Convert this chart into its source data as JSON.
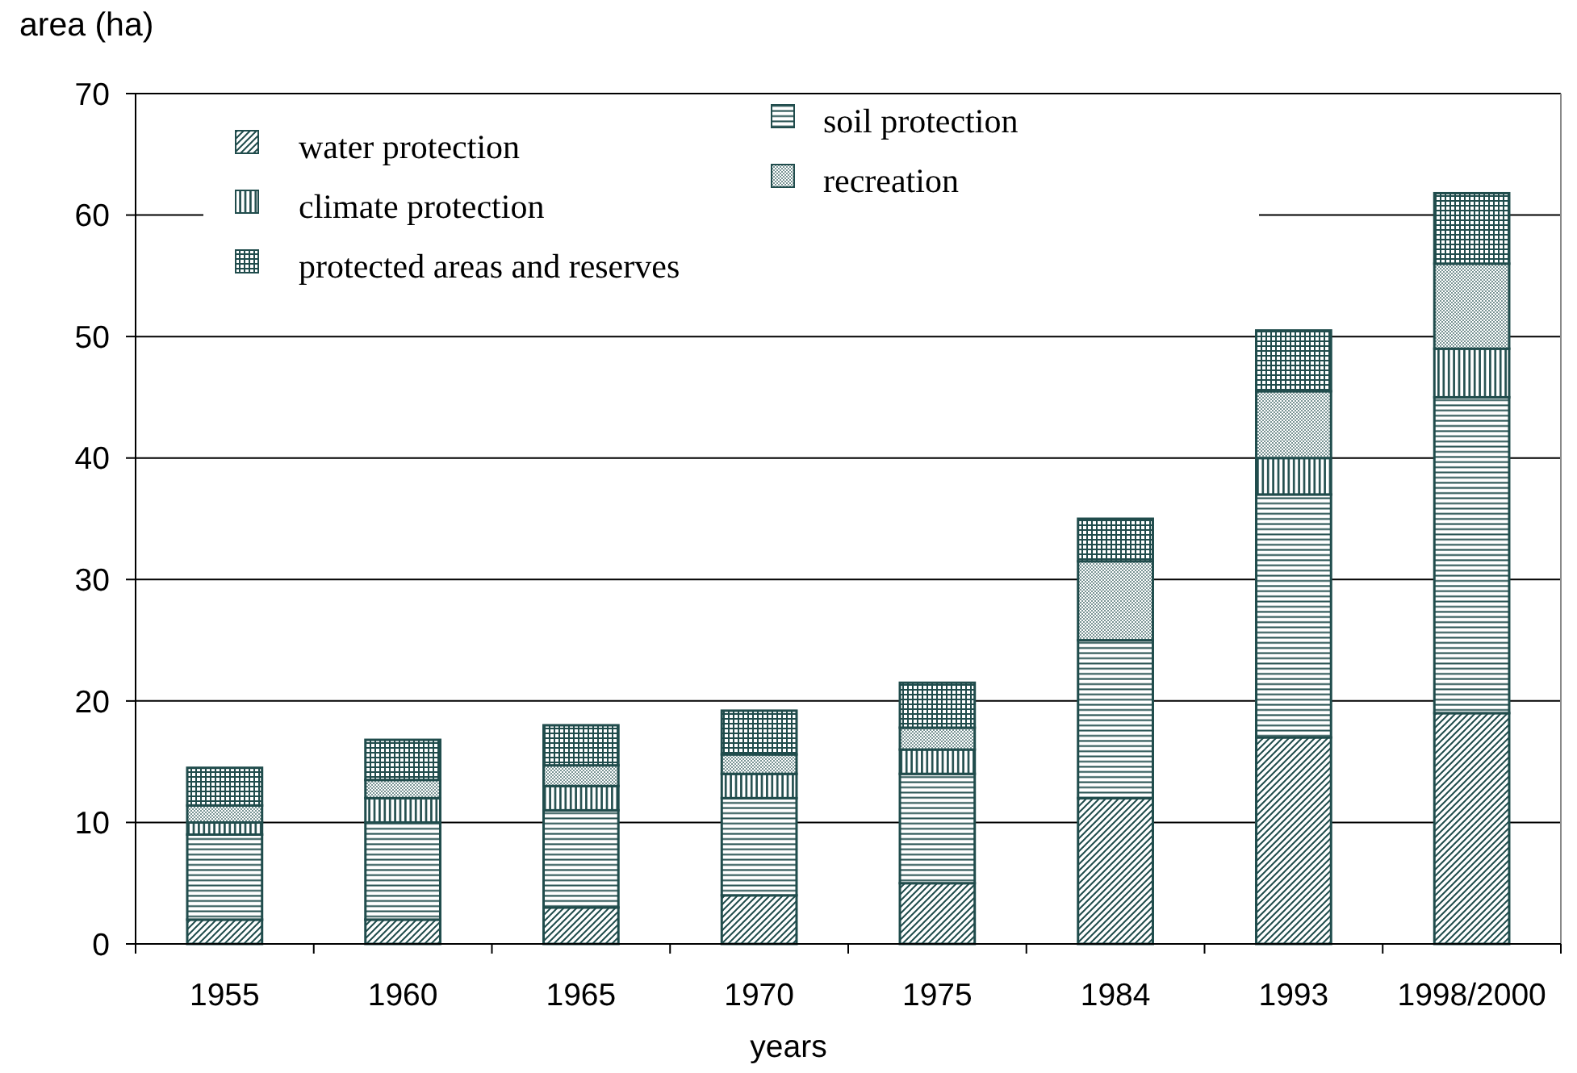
{
  "chart_data": {
    "type": "bar",
    "stacked": true,
    "xlabel": "years",
    "ylabel": "area (ha)",
    "categories": [
      "1955",
      "1960",
      "1965",
      "1970",
      "1975",
      "1984",
      "1993",
      "1998/2000"
    ],
    "series": [
      {
        "name": "water protection",
        "color": "#204c4c",
        "values": [
          2,
          2,
          3,
          4,
          5,
          12,
          17,
          19
        ]
      },
      {
        "name": "soil protection",
        "color": "#204c4c",
        "values": [
          7,
          8,
          8,
          8,
          9,
          13,
          20,
          26
        ]
      },
      {
        "name": "climate protection",
        "color": "#204c4c",
        "values": [
          1,
          2,
          2,
          2,
          2,
          null,
          3,
          4
        ]
      },
      {
        "name": "recreation",
        "color": "#204c4c",
        "values": [
          1.4,
          1.5,
          1.7,
          1.6,
          1.8,
          6.5,
          5.5,
          7
        ]
      },
      {
        "name": "protected areas and reserves",
        "color": "#204c4c",
        "values": [
          3.1,
          3.3,
          3.3,
          3.6,
          3.7,
          3.5,
          5,
          5.8
        ]
      }
    ],
    "ylim": [
      0,
      70
    ],
    "yticks": [
      0,
      10,
      20,
      30,
      40,
      50,
      60,
      70
    ],
    "grid": "y",
    "legend": "top left"
  }
}
